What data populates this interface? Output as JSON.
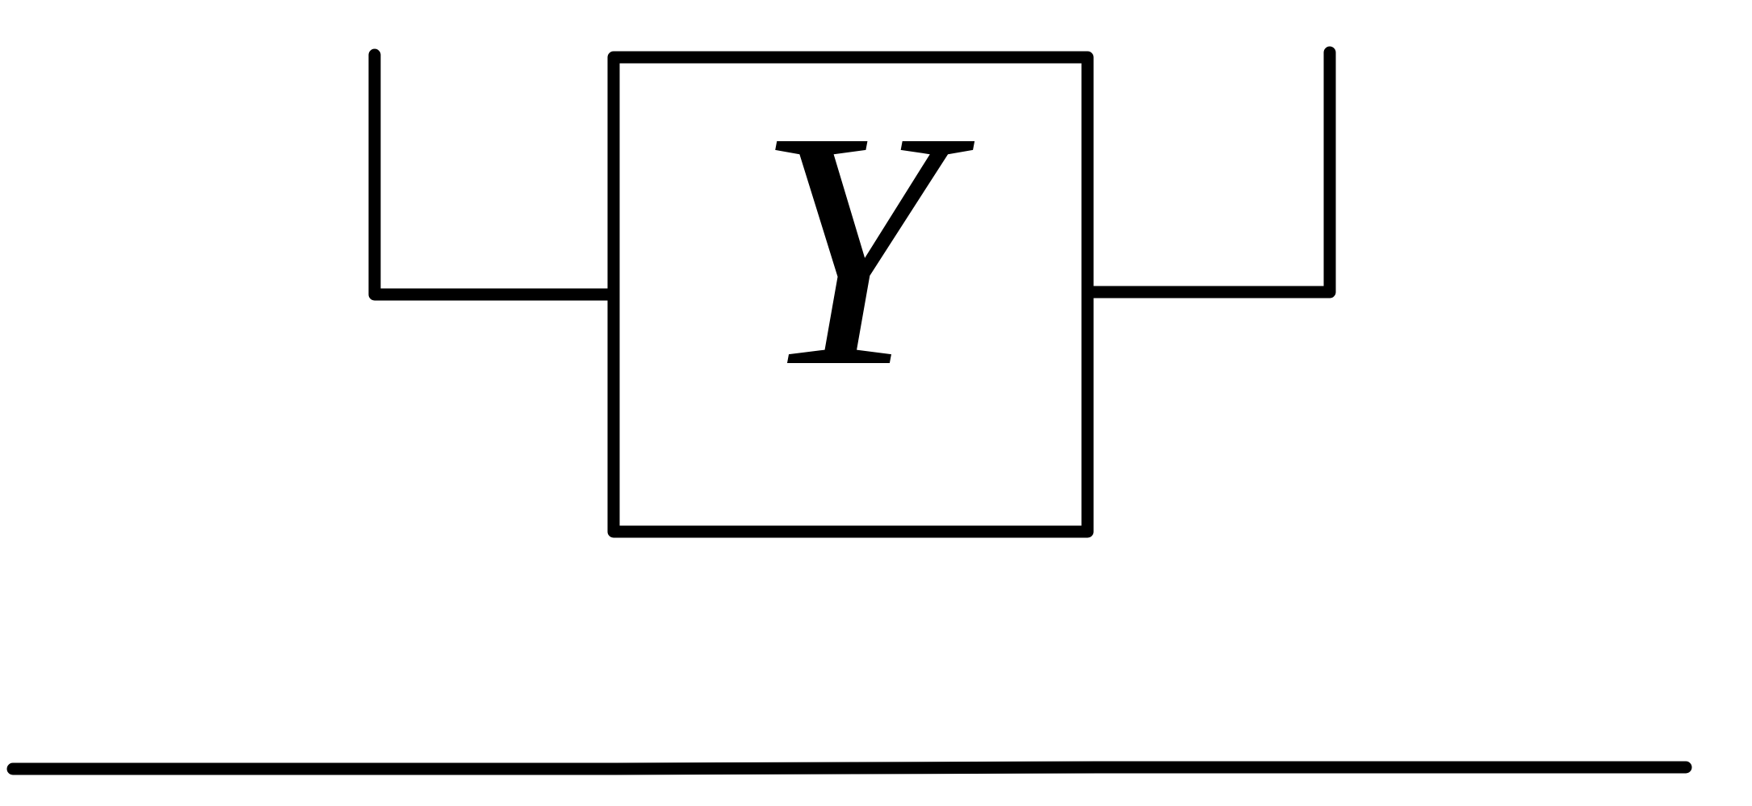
{
  "diagram": {
    "box_label": "Y",
    "colors": {
      "stroke": "#000000",
      "background": "#ffffff"
    }
  }
}
